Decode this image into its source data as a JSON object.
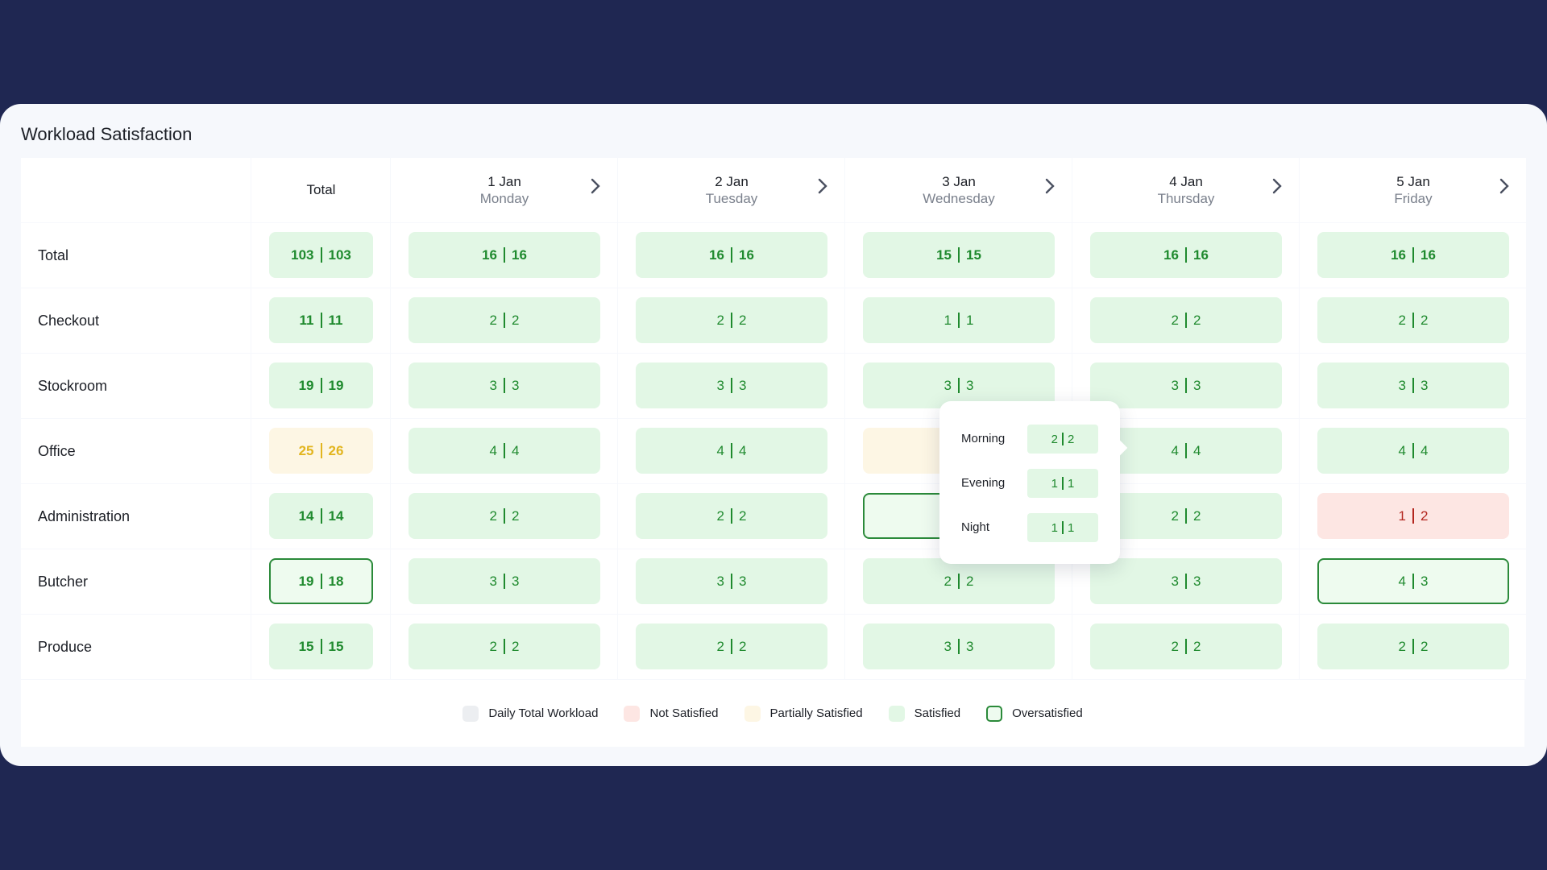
{
  "title": "Workload Satisfaction",
  "table": {
    "total_header": "Total",
    "days": [
      {
        "date": "1 Jan",
        "weekday": "Monday"
      },
      {
        "date": "2 Jan",
        "weekday": "Tuesday"
      },
      {
        "date": "3 Jan",
        "weekday": "Wednesday"
      },
      {
        "date": "4 Jan",
        "weekday": "Thursday"
      },
      {
        "date": "5 Jan",
        "weekday": "Friday"
      }
    ],
    "rows": [
      {
        "label": "Total",
        "total": {
          "values": [
            103,
            103
          ],
          "status": "satisfied"
        },
        "cells": [
          {
            "values": [
              16,
              16
            ],
            "status": "satisfied"
          },
          {
            "values": [
              16,
              16
            ],
            "status": "satisfied"
          },
          {
            "values": [
              15,
              15
            ],
            "status": "satisfied"
          },
          {
            "values": [
              16,
              16
            ],
            "status": "satisfied"
          },
          {
            "values": [
              16,
              16
            ],
            "status": "satisfied"
          }
        ]
      },
      {
        "label": "Checkout",
        "total": {
          "values": [
            11,
            11
          ],
          "status": "satisfied"
        },
        "cells": [
          {
            "values": [
              2,
              2
            ],
            "status": "satisfied"
          },
          {
            "values": [
              2,
              2
            ],
            "status": "satisfied"
          },
          {
            "values": [
              1,
              1
            ],
            "status": "satisfied"
          },
          {
            "values": [
              2,
              2
            ],
            "status": "satisfied"
          },
          {
            "values": [
              2,
              2
            ],
            "status": "satisfied"
          }
        ]
      },
      {
        "label": "Stockroom",
        "total": {
          "values": [
            19,
            19
          ],
          "status": "satisfied"
        },
        "cells": [
          {
            "values": [
              3,
              3
            ],
            "status": "satisfied"
          },
          {
            "values": [
              3,
              3
            ],
            "status": "satisfied"
          },
          {
            "values": [
              3,
              3
            ],
            "status": "satisfied"
          },
          {
            "values": [
              3,
              3
            ],
            "status": "satisfied"
          },
          {
            "values": [
              3,
              3
            ],
            "status": "satisfied"
          }
        ]
      },
      {
        "label": "Office",
        "total": {
          "values": [
            25,
            26
          ],
          "status": "partial"
        },
        "cells": [
          {
            "values": [
              4,
              4
            ],
            "status": "satisfied"
          },
          {
            "values": [
              4,
              4
            ],
            "status": "satisfied"
          },
          {
            "status": "partial"
          },
          {
            "values": [
              4,
              4
            ],
            "status": "satisfied"
          },
          {
            "values": [
              4,
              4
            ],
            "status": "satisfied"
          }
        ]
      },
      {
        "label": "Administration",
        "total": {
          "values": [
            14,
            14
          ],
          "status": "satisfied"
        },
        "cells": [
          {
            "values": [
              2,
              2
            ],
            "status": "satisfied"
          },
          {
            "values": [
              2,
              2
            ],
            "status": "satisfied"
          },
          {
            "status": "over"
          },
          {
            "values": [
              2,
              2
            ],
            "status": "satisfied"
          },
          {
            "values": [
              1,
              2
            ],
            "status": "not"
          }
        ]
      },
      {
        "label": "Butcher",
        "total": {
          "values": [
            19,
            18
          ],
          "status": "over"
        },
        "cells": [
          {
            "values": [
              3,
              3
            ],
            "status": "satisfied"
          },
          {
            "values": [
              3,
              3
            ],
            "status": "satisfied"
          },
          {
            "values": [
              2,
              2
            ],
            "status": "satisfied"
          },
          {
            "values": [
              3,
              3
            ],
            "status": "satisfied"
          },
          {
            "values": [
              4,
              3
            ],
            "status": "over"
          }
        ]
      },
      {
        "label": "Produce",
        "total": {
          "values": [
            15,
            15
          ],
          "status": "satisfied"
        },
        "cells": [
          {
            "values": [
              2,
              2
            ],
            "status": "satisfied"
          },
          {
            "values": [
              2,
              2
            ],
            "status": "satisfied"
          },
          {
            "values": [
              3,
              3
            ],
            "status": "satisfied"
          },
          {
            "values": [
              2,
              2
            ],
            "status": "satisfied"
          },
          {
            "values": [
              2,
              2
            ],
            "status": "satisfied"
          }
        ]
      }
    ]
  },
  "tooltip": {
    "rows": [
      {
        "label": "Morning",
        "values": [
          2,
          2
        ]
      },
      {
        "label": "Evening",
        "values": [
          1,
          1
        ]
      },
      {
        "label": "Night",
        "values": [
          1,
          1
        ]
      }
    ]
  },
  "legend": [
    {
      "label": "Daily Total Workload",
      "status": "daily"
    },
    {
      "label": "Not Satisfied",
      "status": "not"
    },
    {
      "label": "Partially Satisfied",
      "status": "partial"
    },
    {
      "label": "Satisfied",
      "status": "satisfied"
    },
    {
      "label": "Oversatisfied",
      "status": "over"
    }
  ]
}
